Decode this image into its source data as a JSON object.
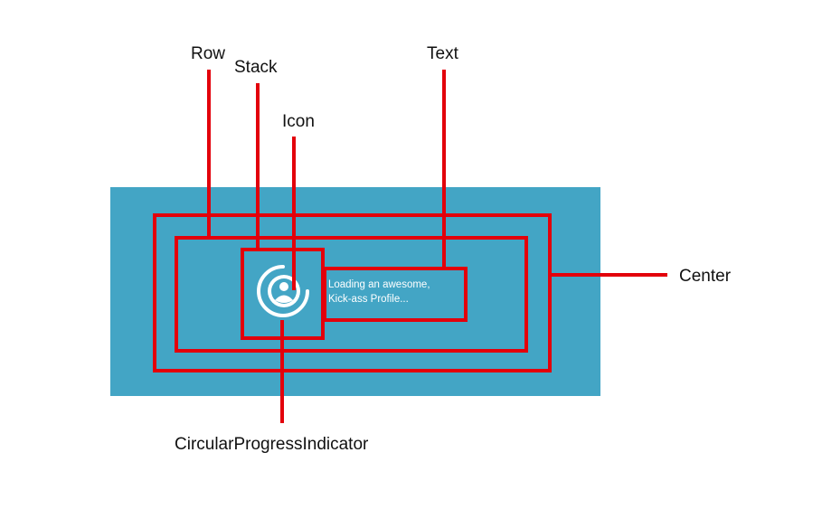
{
  "colors": {
    "panel": "#43a5c5",
    "outline": "#e3000b",
    "leader": "#e3000b",
    "label_text": "#111111",
    "app_text": "#ffffff"
  },
  "labels": {
    "row": "Row",
    "stack": "Stack",
    "icon": "Icon",
    "text": "Text",
    "center": "Center",
    "circular_progress_indicator": "CircularProgressIndicator"
  },
  "app": {
    "icon": "account-circle-icon",
    "loading_text_line1": "Loading an awesome,",
    "loading_text_line2": "Kick-ass Profile..."
  }
}
